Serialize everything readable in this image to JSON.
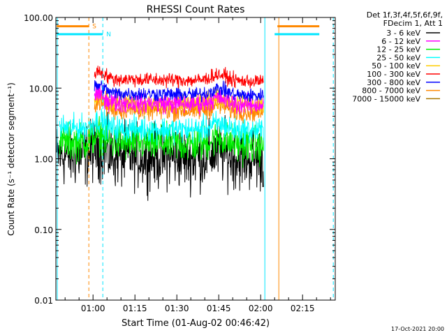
{
  "chart_data": {
    "type": "line",
    "title": "RHESSI Count Rates",
    "xlabel": "Start Time (01-Aug-02 00:46:42)",
    "ylabel": "Count Rate (s⁻¹ detector segment⁻¹)",
    "y_scale": "log",
    "ylim": [
      0.01,
      100
    ],
    "y_ticks": [
      "0.01",
      "0.10",
      "1.00",
      "10.00",
      "100.00"
    ],
    "x_ticks": [
      "01:00",
      "01:15",
      "01:30",
      "01:45",
      "02:00",
      "02:15"
    ],
    "x_tick_minutes": [
      60,
      75,
      90,
      105,
      120,
      135
    ],
    "xlim_minutes": [
      46.7,
      146.7
    ],
    "legend_header": [
      "Det 1f,3f,4f,5f,6f,9f,",
      "FDecim 1, Att 1"
    ],
    "legend_position": "right",
    "series": [
      {
        "name": "3 - 6 keV",
        "color": "#000000",
        "level": 1.1,
        "range": [
          47,
          121
        ],
        "noise": 0.22
      },
      {
        "name": "6 - 12 keV",
        "color": "#ff00ff",
        "level": 6.3,
        "range": [
          60.5,
          121
        ],
        "noise": 0.07
      },
      {
        "name": "12 - 25 keV",
        "color": "#00ee00",
        "level": 1.7,
        "range": [
          48,
          121
        ],
        "noise": 0.13
      },
      {
        "name": "25 - 50 keV",
        "color": "#00ffff",
        "level": 2.7,
        "range": [
          48,
          121
        ],
        "noise": 0.09
      },
      {
        "name": "50 - 100 keV",
        "color": "#ffcc00",
        "level": 6.3,
        "range": [
          60.5,
          121
        ],
        "noise": 0.07
      },
      {
        "name": "100 - 300 keV",
        "color": "#ff0000",
        "level": 13.5,
        "range": [
          60.5,
          121
        ],
        "noise": 0.05
      },
      {
        "name": "300 - 800 keV",
        "color": "#0000ff",
        "level": 8.5,
        "range": [
          60.5,
          121
        ],
        "noise": 0.05
      },
      {
        "name": "800 - 7000 keV",
        "color": "#ff8800",
        "level": 5.0,
        "range": [
          60.5,
          121
        ],
        "noise": 0.07
      },
      {
        "name": "7000 - 15000 keV",
        "color": "#aa7700",
        "level": null,
        "range": null,
        "noise": 0
      }
    ],
    "flags": [
      {
        "label": "S",
        "color": "#ff8800",
        "level": 75,
        "ranges": [
          [
            47,
            58.5
          ],
          [
            126,
            141
          ]
        ]
      },
      {
        "label": "N",
        "color": "#00e5ff",
        "level": 58,
        "ranges": [
          [
            47,
            63.5
          ],
          [
            125,
            141
          ]
        ]
      }
    ],
    "markers": [
      {
        "color": "#ff8800",
        "minute": 58.5,
        "style": "dashed"
      },
      {
        "color": "#00e5ff",
        "minute": 63.5,
        "style": "dashed"
      },
      {
        "color": "#00e5ff",
        "minute": 121.5,
        "style": "solid"
      },
      {
        "color": "#ff8800",
        "minute": 126.5,
        "style": "solid"
      },
      {
        "color": "#00e5ff",
        "minute": 146,
        "style": "dashed"
      },
      {
        "color": "#00e5ff",
        "minute": 47.2,
        "style": "solid"
      }
    ]
  },
  "footer": {
    "timestamp": "17-Oct-2021 20:00"
  }
}
